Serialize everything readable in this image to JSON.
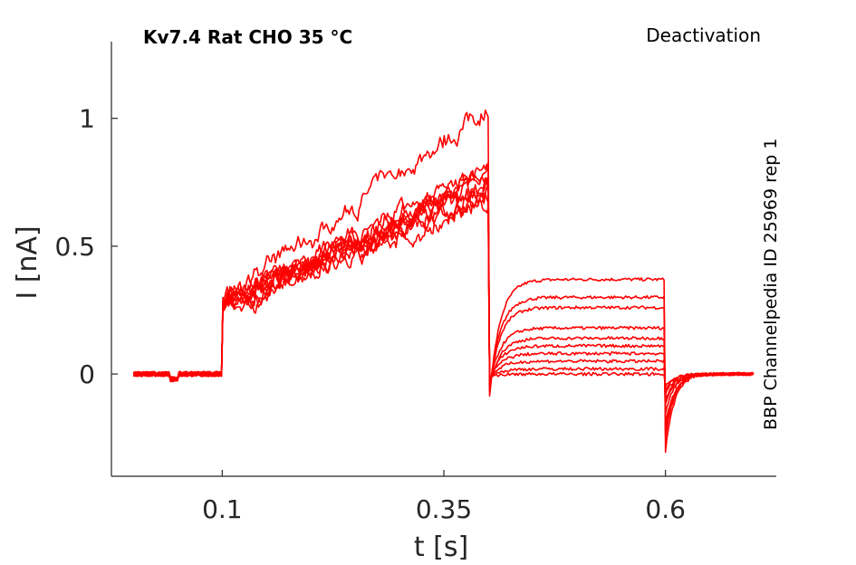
{
  "chart_data": {
    "type": "line",
    "title": "Kv7.4  Rat  CHO  35 °C",
    "subtitle": "Deactivation",
    "side_note": "BBP Channelpedia ID 25969 rep 1",
    "xlabel": "t [s]",
    "ylabel": "I [nA]",
    "xlim": [
      -0.025,
      0.725
    ],
    "ylim": [
      -0.4,
      1.3
    ],
    "xticks": [
      0.1,
      0.35,
      0.6
    ],
    "xtick_labels": [
      "0.1",
      "0.35",
      "0.6"
    ],
    "yticks": [
      0,
      0.5,
      1
    ],
    "ytick_labels": [
      "0",
      "0.5",
      "1"
    ],
    "grid": false,
    "color": "#ff0000",
    "protocol": {
      "pre_end": 0.1,
      "step_end": 0.4,
      "tail_end": 0.6,
      "t_start": 0.0,
      "t_end": 0.7
    },
    "series": [
      {
        "activation_start": 0.27,
        "activation_end": 1.05,
        "tail_level": 0.37,
        "tail_dip": -0.15,
        "post_dip": -0.3
      },
      {
        "activation_start": 0.28,
        "activation_end": 0.8,
        "tail_level": 0.3,
        "tail_dip": -0.12,
        "post_dip": -0.25
      },
      {
        "activation_start": 0.27,
        "activation_end": 0.75,
        "tail_level": 0.26,
        "tail_dip": -0.1,
        "post_dip": -0.22
      },
      {
        "activation_start": 0.28,
        "activation_end": 0.78,
        "tail_level": 0.18,
        "tail_dip": -0.08,
        "post_dip": -0.2
      },
      {
        "activation_start": 0.27,
        "activation_end": 0.72,
        "tail_level": 0.14,
        "tail_dip": -0.07,
        "post_dip": -0.15
      },
      {
        "activation_start": 0.28,
        "activation_end": 0.7,
        "tail_level": 0.11,
        "tail_dip": -0.05,
        "post_dip": -0.12
      },
      {
        "activation_start": 0.27,
        "activation_end": 0.68,
        "tail_level": 0.08,
        "tail_dip": -0.04,
        "post_dip": -0.1
      },
      {
        "activation_start": 0.28,
        "activation_end": 0.74,
        "tail_level": 0.05,
        "tail_dip": -0.03,
        "post_dip": -0.08
      },
      {
        "activation_start": 0.27,
        "activation_end": 0.66,
        "tail_level": 0.02,
        "tail_dip": -0.02,
        "post_dip": -0.06
      },
      {
        "activation_start": 0.28,
        "activation_end": 0.76,
        "tail_level": 0.0,
        "tail_dip": -0.01,
        "post_dip": -0.05
      }
    ]
  }
}
